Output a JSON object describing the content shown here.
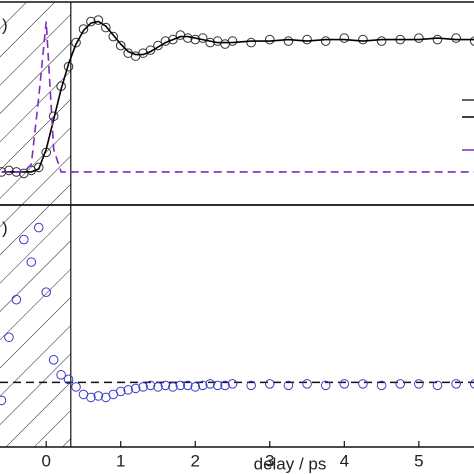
{
  "chart_data": [
    {
      "type": "line",
      "panel_label": ")",
      "x": [
        -0.6,
        -0.5,
        -0.4,
        -0.3,
        -0.2,
        -0.1,
        0,
        0.1,
        0.2,
        0.3,
        0.4,
        0.5,
        0.6,
        0.7,
        0.8,
        0.9,
        1.0,
        1.1,
        1.2,
        1.3,
        1.4,
        1.5,
        1.6,
        1.7,
        1.8,
        1.9,
        2.0,
        2.1,
        2.2,
        2.3,
        2.4,
        2.5,
        2.75,
        3.0,
        3.25,
        3.5,
        3.75,
        4.0,
        4.25,
        4.5,
        4.75,
        5.0,
        5.25,
        5.5,
        5.75
      ],
      "series": [
        {
          "style": "markers",
          "color": "#333333",
          "values": [
            0,
            0.01,
            0,
            -0.01,
            0.01,
            0.03,
            0.13,
            0.37,
            0.57,
            0.7,
            0.86,
            0.95,
            1.0,
            1.01,
            0.96,
            0.9,
            0.84,
            0.79,
            0.77,
            0.79,
            0.81,
            0.84,
            0.87,
            0.88,
            0.91,
            0.89,
            0.88,
            0.89,
            0.86,
            0.87,
            0.85,
            0.87,
            0.86,
            0.88,
            0.87,
            0.88,
            0.87,
            0.89,
            0.88,
            0.87,
            0.88,
            0.89,
            0.88,
            0.89,
            0.87
          ]
        },
        {
          "style": "line",
          "color": "#000000",
          "values": [
            0,
            0,
            0,
            0,
            0,
            0.02,
            0.15,
            0.35,
            0.55,
            0.72,
            0.85,
            0.94,
            0.99,
            1.0,
            0.97,
            0.91,
            0.85,
            0.8,
            0.78,
            0.78,
            0.8,
            0.83,
            0.86,
            0.88,
            0.9,
            0.9,
            0.89,
            0.88,
            0.87,
            0.86,
            0.86,
            0.86,
            0.87,
            0.87,
            0.88,
            0.87,
            0.88,
            0.88,
            0.87,
            0.88,
            0.88,
            0.88,
            0.89,
            0.88,
            0.88
          ]
        },
        {
          "style": "dashed",
          "color": "#7b2fbe",
          "values": [
            0,
            0,
            0,
            0,
            0.05,
            0.5,
            1.0,
            0.15,
            0,
            0,
            0,
            0,
            0,
            0,
            0,
            0,
            0,
            0,
            0,
            0,
            0,
            0,
            0,
            0,
            0,
            0,
            0,
            0,
            0,
            0,
            0,
            0,
            0,
            0,
            0,
            0,
            0,
            0,
            0,
            0,
            0,
            0,
            0,
            0,
            0
          ]
        }
      ],
      "xlim": [
        -0.62,
        5.74
      ],
      "ylim": [
        -0.22,
        1.13
      ],
      "shade_end": 0.33
    },
    {
      "type": "line",
      "panel_label": ")",
      "x_label": "delay / ps",
      "x": [
        -0.6,
        -0.5,
        -0.4,
        -0.3,
        -0.2,
        -0.1,
        0,
        0.1,
        0.2,
        0.3,
        0.4,
        0.5,
        0.6,
        0.7,
        0.8,
        0.9,
        1.0,
        1.1,
        1.2,
        1.3,
        1.4,
        1.5,
        1.6,
        1.7,
        1.8,
        1.9,
        2.0,
        2.1,
        2.2,
        2.3,
        2.4,
        2.5,
        2.75,
        3.0,
        3.25,
        3.5,
        3.75,
        4.0,
        4.25,
        4.5,
        4.75,
        5.0,
        5.25,
        5.5,
        5.75
      ],
      "series": [
        {
          "style": "markers",
          "color": "#3b3bc8",
          "values": [
            -0.12,
            0.3,
            0.55,
            0.95,
            0.8,
            1.03,
            0.6,
            0.15,
            0.05,
            0.02,
            -0.03,
            -0.08,
            -0.1,
            -0.09,
            -0.1,
            -0.08,
            -0.06,
            -0.05,
            -0.04,
            -0.03,
            -0.02,
            -0.03,
            -0.02,
            -0.03,
            -0.02,
            -0.02,
            -0.03,
            -0.02,
            -0.01,
            -0.02,
            -0.02,
            -0.01,
            -0.02,
            -0.01,
            -0.02,
            -0.01,
            -0.02,
            -0.01,
            -0.01,
            -0.02,
            -0.01,
            -0.01,
            -0.02,
            -0.01,
            -0.01
          ]
        }
      ],
      "reference_line": 0,
      "xlim": [
        -0.62,
        5.74
      ],
      "ylim": [
        -0.43,
        1.18
      ],
      "shade_end": 0.33,
      "xticks": [
        0,
        1,
        2,
        3,
        4,
        5
      ]
    }
  ]
}
